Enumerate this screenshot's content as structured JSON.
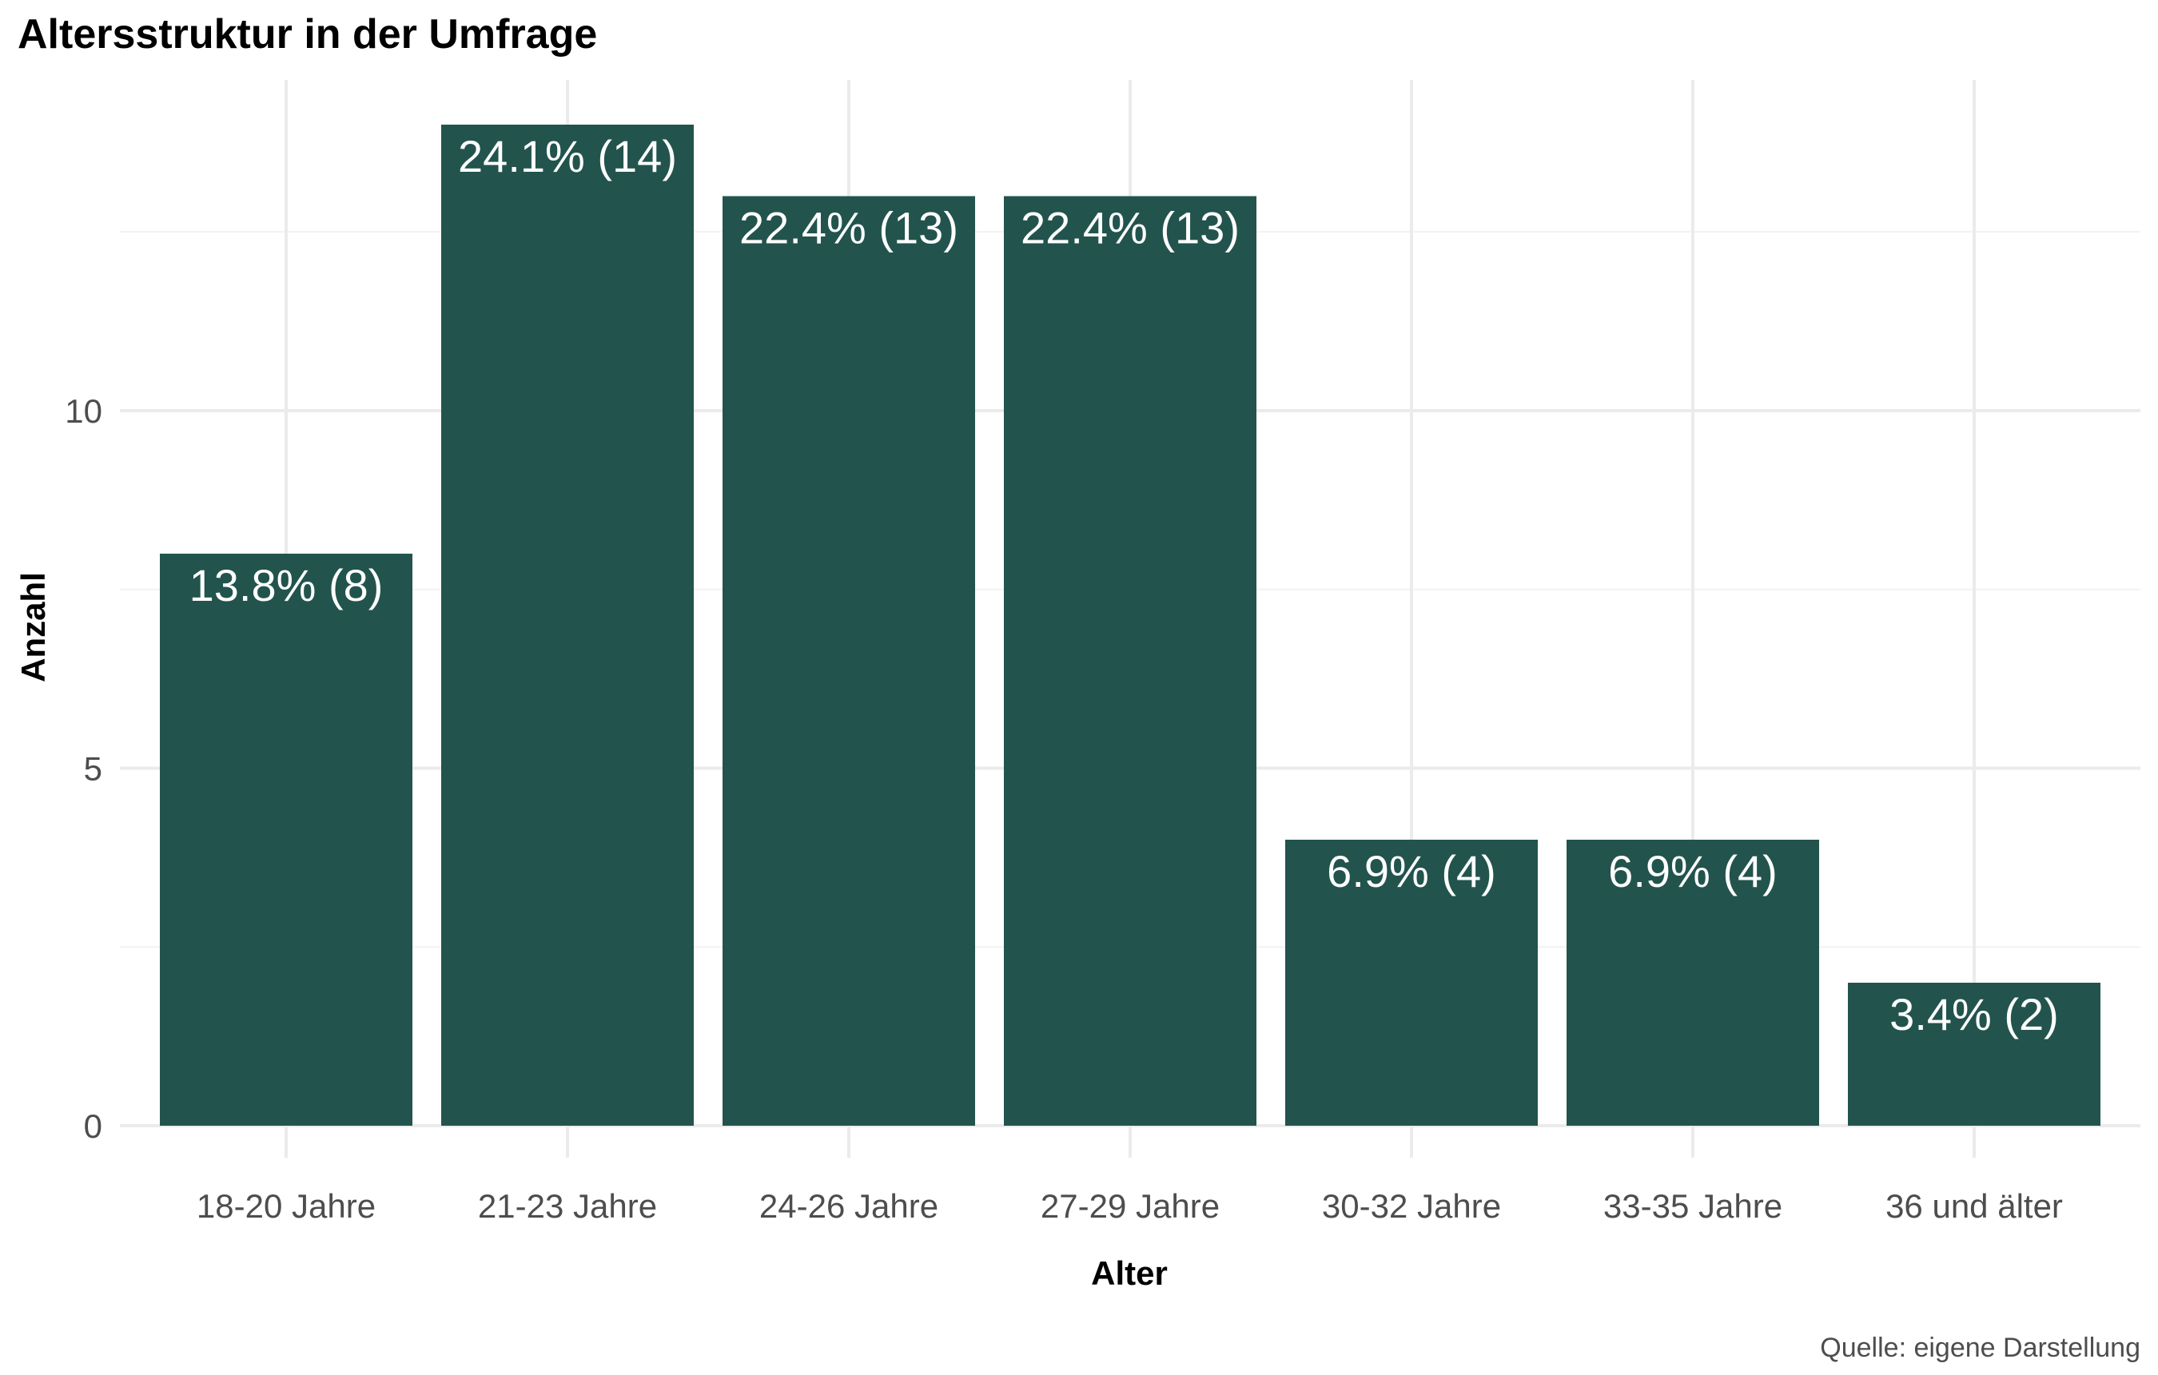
{
  "chart_data": {
    "type": "bar",
    "title": "Altersstruktur in der Umfrage",
    "xlabel": "Alter",
    "ylabel": "Anzahl",
    "caption": "Quelle: eigene Darstellung",
    "categories": [
      "18-20 Jahre",
      "21-23 Jahre",
      "24-26 Jahre",
      "27-29 Jahre",
      "30-32 Jahre",
      "33-35 Jahre",
      "36 und älter"
    ],
    "values": [
      8,
      14,
      13,
      13,
      4,
      4,
      2
    ],
    "data_labels": [
      "13.8% (8)",
      "24.1% (14)",
      "22.4% (13)",
      "22.4% (13)",
      "6.9% (4)",
      "6.9% (4)",
      "3.4% (2)"
    ],
    "ylim": [
      0,
      14
    ],
    "y_ticks": [
      0,
      5,
      10
    ],
    "grid": true,
    "legend": "none",
    "colors": {
      "bar": "#22544d",
      "bar_label": "#ffffff"
    }
  }
}
